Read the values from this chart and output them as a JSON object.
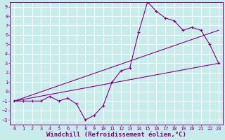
{
  "xlabel": "Windchill (Refroidissement éolien,°C)",
  "ylabel": "",
  "xlim": [
    -0.5,
    23.5
  ],
  "ylim": [
    -3.5,
    9.5
  ],
  "xticks": [
    0,
    1,
    2,
    3,
    4,
    5,
    6,
    7,
    8,
    9,
    10,
    11,
    12,
    13,
    14,
    15,
    16,
    17,
    18,
    19,
    20,
    21,
    22,
    23
  ],
  "yticks": [
    -3,
    -2,
    -1,
    0,
    1,
    2,
    3,
    4,
    5,
    6,
    7,
    8,
    9
  ],
  "background_color": "#c8ecec",
  "grid_color": "#ffffff",
  "line_color": "#800080",
  "line1_x": [
    0,
    1,
    2,
    3,
    4,
    5,
    6,
    7,
    8,
    9,
    10,
    11,
    12,
    13,
    14,
    15,
    16,
    17,
    18,
    19,
    20,
    21,
    22,
    23
  ],
  "line1_y": [
    -1,
    -1,
    -1,
    -1,
    -0.5,
    -1,
    -0.7,
    -1.3,
    -3,
    -2.5,
    -1.5,
    1.0,
    2.2,
    2.5,
    6.3,
    9.5,
    8.5,
    7.8,
    7.5,
    6.5,
    6.8,
    6.5,
    5.0,
    3.0
  ],
  "line2_x": [
    0,
    23
  ],
  "line2_y": [
    -1,
    3.0
  ],
  "line3_x": [
    0,
    23
  ],
  "line3_y": [
    -1,
    6.5
  ],
  "tick_fontsize": 5.0,
  "xlabel_fontsize": 6.5
}
